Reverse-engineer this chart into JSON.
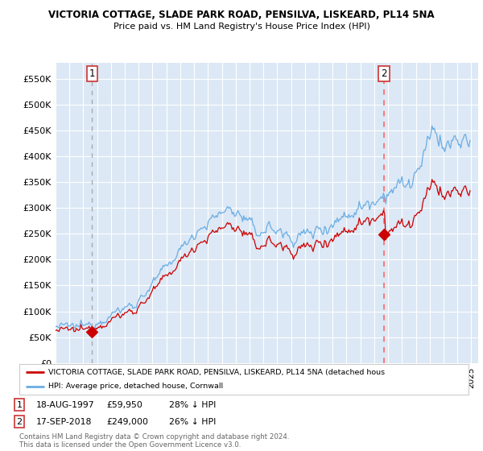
{
  "title1": "VICTORIA COTTAGE, SLADE PARK ROAD, PENSILVA, LISKEARD, PL14 5NA",
  "title2": "Price paid vs. HM Land Registry's House Price Index (HPI)",
  "plot_bg_color": "#dce8f5",
  "hpi_color": "#6aade4",
  "price_color": "#cc0000",
  "vline1_color": "#999999",
  "vline2_color": "#ff6666",
  "ylim": [
    0,
    580000
  ],
  "yticks": [
    0,
    50000,
    100000,
    150000,
    200000,
    250000,
    300000,
    350000,
    400000,
    450000,
    500000,
    550000
  ],
  "ytick_labels": [
    "£0",
    "£50K",
    "£100K",
    "£150K",
    "£200K",
    "£250K",
    "£300K",
    "£350K",
    "£400K",
    "£450K",
    "£500K",
    "£550K"
  ],
  "sale1_year": 1997.63,
  "sale1_price": 59950,
  "sale2_year": 2018.71,
  "sale2_price": 249000,
  "legend1": "VICTORIA COTTAGE, SLADE PARK ROAD, PENSILVA, LISKEARD, PL14 5NA (detached hous",
  "legend2": "HPI: Average price, detached house, Cornwall",
  "footer": "Contains HM Land Registry data © Crown copyright and database right 2024.\nThis data is licensed under the Open Government Licence v3.0.",
  "xstart": 1995.0,
  "xend": 2025.5
}
